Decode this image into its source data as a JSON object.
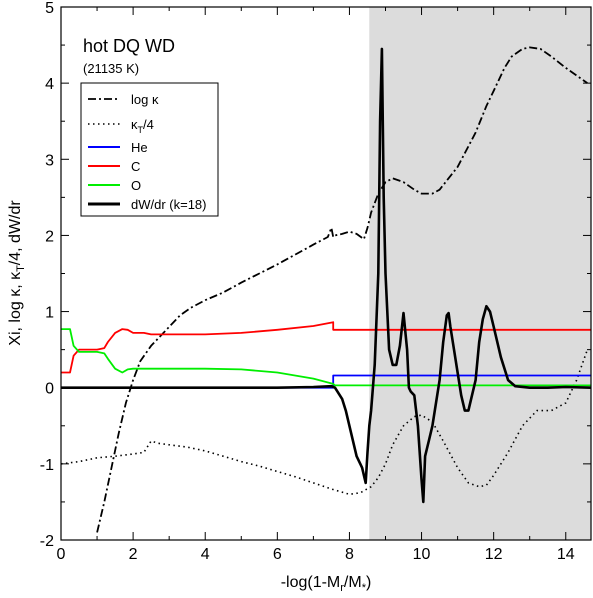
{
  "chart_data": {
    "type": "line",
    "title": "hot DQ WD",
    "subtitle": "(21135 K)",
    "xlabel": "-log(1-M_r/M_*)",
    "ylabel": "Xi, log κ, κ_T/4, dW/dr",
    "xlim": [
      0,
      14.7
    ],
    "ylim": [
      -2,
      5
    ],
    "grid": false,
    "legend_position": "upper-left",
    "x_ticks": [
      0,
      2,
      4,
      6,
      8,
      10,
      12,
      14
    ],
    "y_ticks": [
      -2,
      -1,
      0,
      1,
      2,
      3,
      4,
      5
    ],
    "shaded_region": {
      "x_start": 8.55,
      "x_end": 14.7,
      "color": "#dcdcdc"
    },
    "series": [
      {
        "name": "log κ",
        "color": "#000000",
        "style": "dashdot",
        "x": [
          1.0,
          1.2,
          1.4,
          1.6,
          1.8,
          2.0,
          2.2,
          2.5,
          2.8,
          3.0,
          3.3,
          3.6,
          4.0,
          4.5,
          5.0,
          5.5,
          6.0,
          6.5,
          7.0,
          7.4,
          7.5,
          7.55,
          7.6,
          7.8,
          8.0,
          8.2,
          8.4,
          8.5,
          8.6,
          8.8,
          9.0,
          9.2,
          9.5,
          9.8,
          10.0,
          10.3,
          10.5,
          11.0,
          11.5,
          11.8,
          12.0,
          12.3,
          12.5,
          12.8,
          13.0,
          13.3,
          13.6,
          14.0,
          14.3,
          14.6
        ],
        "y": [
          -1.9,
          -1.5,
          -1.05,
          -0.6,
          -0.2,
          0.1,
          0.35,
          0.55,
          0.7,
          0.8,
          0.95,
          1.05,
          1.15,
          1.25,
          1.38,
          1.5,
          1.62,
          1.75,
          1.88,
          1.98,
          2.1,
          1.98,
          2.0,
          2.02,
          2.05,
          2.02,
          1.95,
          2.1,
          2.3,
          2.55,
          2.7,
          2.75,
          2.7,
          2.6,
          2.55,
          2.55,
          2.6,
          2.9,
          3.35,
          3.7,
          3.9,
          4.2,
          4.35,
          4.45,
          4.47,
          4.45,
          4.35,
          4.2,
          4.1,
          4.0
        ]
      },
      {
        "name": "κ_T/4",
        "color": "#000000",
        "style": "dotted",
        "x": [
          0,
          0.5,
          1.0,
          1.5,
          2.0,
          2.3,
          2.5,
          2.7,
          3.0,
          3.5,
          4.0,
          4.5,
          5.0,
          5.5,
          6.0,
          6.5,
          7.0,
          7.5,
          8.0,
          8.3,
          8.6,
          8.8,
          9.0,
          9.2,
          9.5,
          9.8,
          10.0,
          10.3,
          10.6,
          11.0,
          11.3,
          11.6,
          11.8,
          12.0,
          12.4,
          12.8,
          13.2,
          13.6,
          14.0,
          14.3,
          14.6
        ],
        "y": [
          -1.0,
          -0.97,
          -0.92,
          -0.9,
          -0.87,
          -0.85,
          -0.7,
          -0.73,
          -0.75,
          -0.78,
          -0.83,
          -0.9,
          -0.97,
          -1.03,
          -1.1,
          -1.17,
          -1.25,
          -1.33,
          -1.4,
          -1.38,
          -1.3,
          -1.18,
          -1.0,
          -0.75,
          -0.5,
          -0.38,
          -0.36,
          -0.45,
          -0.7,
          -1.05,
          -1.25,
          -1.3,
          -1.28,
          -1.15,
          -0.85,
          -0.5,
          -0.3,
          -0.3,
          -0.2,
          0.1,
          0.5
        ]
      },
      {
        "name": "He",
        "color": "#0000ff",
        "style": "solid",
        "x": [
          0,
          7.55,
          7.55,
          14.7
        ],
        "y": [
          0,
          0,
          0.16,
          0.16
        ]
      },
      {
        "name": "C",
        "color": "#ff0000",
        "style": "solid",
        "x": [
          0,
          0.25,
          0.35,
          0.5,
          0.8,
          1.0,
          1.2,
          1.3,
          1.5,
          1.7,
          1.85,
          2.0,
          2.3,
          2.5,
          3.0,
          4.0,
          5.0,
          6.0,
          7.0,
          7.55,
          7.55,
          14.7
        ],
        "y": [
          0.2,
          0.2,
          0.42,
          0.5,
          0.5,
          0.5,
          0.52,
          0.6,
          0.72,
          0.77,
          0.76,
          0.72,
          0.72,
          0.7,
          0.7,
          0.7,
          0.72,
          0.76,
          0.81,
          0.86,
          0.76,
          0.76
        ]
      },
      {
        "name": "O",
        "color": "#00ee00",
        "style": "solid",
        "x": [
          0,
          0.25,
          0.35,
          0.5,
          0.8,
          1.0,
          1.2,
          1.3,
          1.5,
          1.7,
          1.85,
          2.0,
          3.0,
          4.0,
          5.0,
          6.0,
          7.0,
          7.55,
          7.6,
          14.7
        ],
        "y": [
          0.77,
          0.77,
          0.55,
          0.47,
          0.47,
          0.47,
          0.45,
          0.38,
          0.25,
          0.2,
          0.24,
          0.25,
          0.25,
          0.25,
          0.24,
          0.2,
          0.12,
          0.05,
          0.03,
          0.03
        ]
      },
      {
        "name": "dW/dr (k=18)",
        "color": "#000000",
        "style": "solid-thick",
        "x": [
          0,
          2.0,
          4.0,
          6.0,
          7.0,
          7.5,
          7.6,
          7.8,
          7.9,
          8.0,
          8.2,
          8.35,
          8.45,
          8.5,
          8.55,
          8.6,
          8.7,
          8.8,
          8.85,
          8.9,
          8.95,
          9.0,
          9.1,
          9.2,
          9.3,
          9.4,
          9.5,
          9.6,
          9.65,
          9.7,
          9.8,
          9.9,
          10.0,
          10.05,
          10.1,
          10.2,
          10.3,
          10.4,
          10.5,
          10.6,
          10.7,
          10.75,
          10.8,
          10.9,
          11.0,
          11.1,
          11.2,
          11.3,
          11.5,
          11.6,
          11.7,
          11.8,
          11.9,
          12.0,
          12.2,
          12.4,
          12.6,
          13.0,
          13.5,
          14.0,
          14.7
        ],
        "y": [
          0,
          0,
          0,
          0,
          0.01,
          0.02,
          0.0,
          -0.15,
          -0.3,
          -0.5,
          -0.9,
          -1.05,
          -1.25,
          -0.85,
          -0.5,
          -0.3,
          0.3,
          1.5,
          3.5,
          4.45,
          2.5,
          1.5,
          0.5,
          0.3,
          0.3,
          0.55,
          0.98,
          0.5,
          0.0,
          -0.05,
          -0.1,
          -0.5,
          -1.2,
          -1.5,
          -0.9,
          -0.7,
          -0.5,
          -0.2,
          0.1,
          0.6,
          0.95,
          0.98,
          0.8,
          0.5,
          0.2,
          -0.1,
          -0.3,
          -0.3,
          0.1,
          0.6,
          0.9,
          1.07,
          1.0,
          0.8,
          0.4,
          0.1,
          0.02,
          0.0,
          0.0,
          0.01,
          0.0
        ]
      }
    ]
  }
}
